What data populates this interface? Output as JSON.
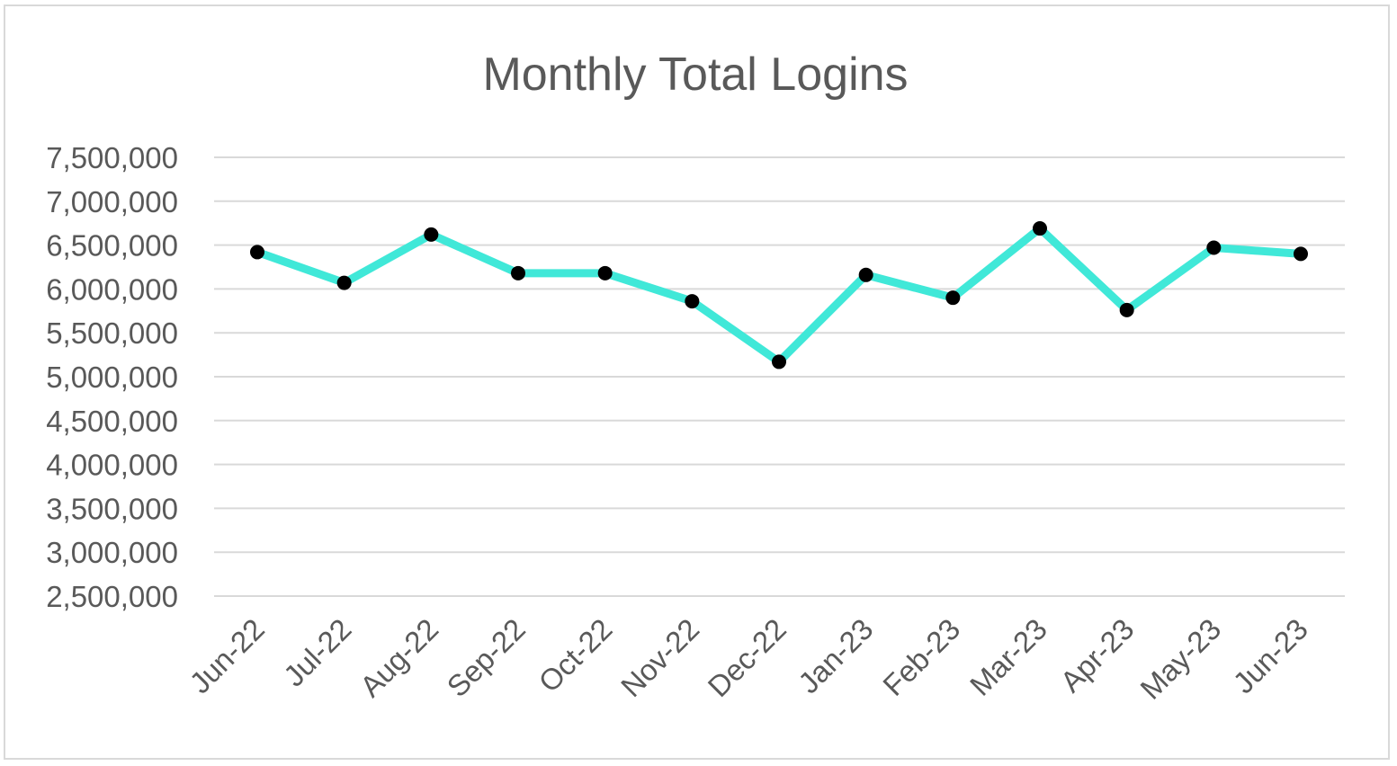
{
  "chart_data": {
    "type": "line",
    "title": "Monthly Total Logins",
    "xlabel": "",
    "ylabel": "",
    "categories": [
      "Jun-22",
      "Jul-22",
      "Aug-22",
      "Sep-22",
      "Oct-22",
      "Nov-22",
      "Dec-22",
      "Jan-23",
      "Feb-23",
      "Mar-23",
      "Apr-23",
      "May-23",
      "Jun-23"
    ],
    "series": [
      {
        "values": [
          6420000,
          6070000,
          6620000,
          6180000,
          6180000,
          5860000,
          5170000,
          6160000,
          5900000,
          6690000,
          5760000,
          6470000,
          6400000
        ],
        "line_color": "#40e8d8",
        "marker_color": "#000000"
      }
    ],
    "ylim": [
      2500000,
      7500000
    ],
    "yticks": [
      2500000,
      3000000,
      3500000,
      4000000,
      4500000,
      5000000,
      5500000,
      6000000,
      6500000,
      7000000,
      7500000
    ],
    "ytick_labels": [
      "2,500,000",
      "3,000,000",
      "3,500,000",
      "4,000,000",
      "4,500,000",
      "5,000,000",
      "5,500,000",
      "6,000,000",
      "6,500,000",
      "7,000,000",
      "7,500,000"
    ],
    "grid": true,
    "legend": "none",
    "colors": {
      "grid": "#d9d9d9",
      "text": "#595959",
      "border": "#d9d9d9"
    }
  }
}
